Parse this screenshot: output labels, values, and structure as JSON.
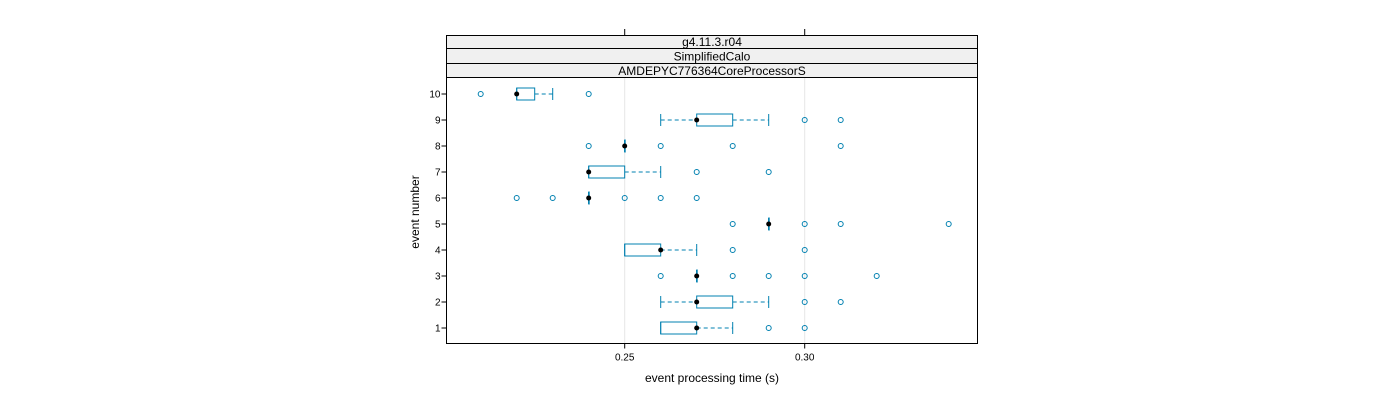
{
  "chart_data": {
    "type": "box",
    "orientation": "horizontal",
    "strips": [
      "g4.11.3.r04",
      "SimplifiedCalo",
      "AMDEPYC776364CoreProcessorS"
    ],
    "xlabel": "event processing time (s)",
    "ylabel": "event number",
    "xlim": [
      0.2005,
      0.348
    ],
    "x_ticks": [
      0.25,
      0.3
    ],
    "x_tick_labels": [
      "0.25",
      "0.30"
    ],
    "colors": {
      "box": "#0080b0",
      "median": "#000000",
      "grid": "#e6e6e6"
    },
    "events": [
      {
        "label": "1",
        "q1": 0.26,
        "median": 0.27,
        "q3": 0.27,
        "wlo": 0.26,
        "whi": 0.28,
        "outliers": [
          0.29,
          0.3
        ]
      },
      {
        "label": "2",
        "q1": 0.27,
        "median": 0.27,
        "q3": 0.28,
        "wlo": 0.26,
        "whi": 0.29,
        "outliers": [
          0.3,
          0.31
        ]
      },
      {
        "label": "3",
        "q1": 0.27,
        "median": 0.27,
        "q3": 0.27,
        "wlo": 0.27,
        "whi": 0.27,
        "outliers": [
          0.26,
          0.28,
          0.29,
          0.3,
          0.32
        ]
      },
      {
        "label": "4",
        "q1": 0.25,
        "median": 0.26,
        "q3": 0.26,
        "wlo": 0.25,
        "whi": 0.27,
        "outliers": [
          0.28,
          0.3
        ]
      },
      {
        "label": "5",
        "q1": 0.29,
        "median": 0.29,
        "q3": 0.29,
        "wlo": 0.29,
        "whi": 0.29,
        "outliers": [
          0.28,
          0.3,
          0.31,
          0.34
        ]
      },
      {
        "label": "6",
        "q1": 0.24,
        "median": 0.24,
        "q3": 0.24,
        "wlo": 0.24,
        "whi": 0.24,
        "outliers": [
          0.22,
          0.23,
          0.25,
          0.26,
          0.27
        ]
      },
      {
        "label": "7",
        "q1": 0.24,
        "median": 0.24,
        "q3": 0.25,
        "wlo": 0.24,
        "whi": 0.26,
        "outliers": [
          0.27,
          0.29
        ]
      },
      {
        "label": "8",
        "q1": 0.25,
        "median": 0.25,
        "q3": 0.25,
        "wlo": 0.25,
        "whi": 0.25,
        "outliers": [
          0.24,
          0.26,
          0.28,
          0.31
        ]
      },
      {
        "label": "9",
        "q1": 0.27,
        "median": 0.27,
        "q3": 0.28,
        "wlo": 0.26,
        "whi": 0.29,
        "outliers": [
          0.3,
          0.31
        ]
      },
      {
        "label": "10",
        "q1": 0.22,
        "median": 0.22,
        "q3": 0.225,
        "wlo": 0.22,
        "whi": 0.23,
        "outliers": [
          0.21,
          0.24
        ]
      }
    ]
  }
}
